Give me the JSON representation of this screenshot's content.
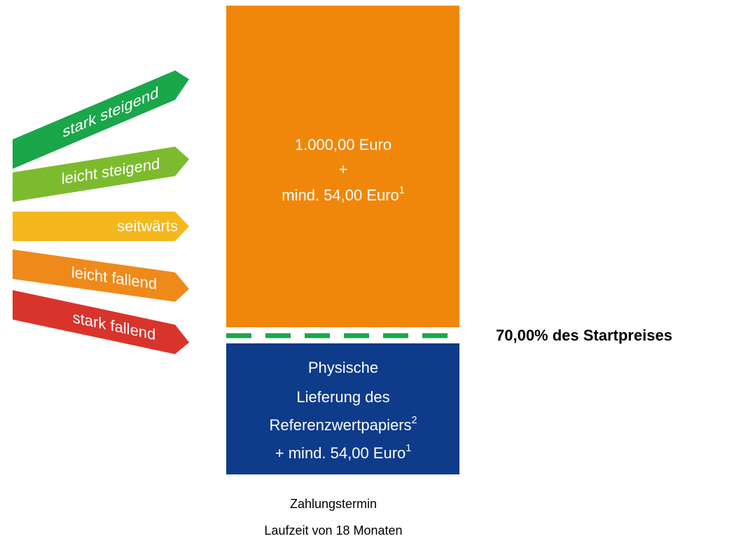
{
  "arrows": [
    {
      "label": "stark steigend",
      "color": "#1aa64a"
    },
    {
      "label": "leicht steigend",
      "color": "#7dbb2e"
    },
    {
      "label": "seitwärts",
      "color": "#f5b81c"
    },
    {
      "label": "leicht fallend",
      "color": "#ef8a1a"
    },
    {
      "label": "stark fallend",
      "color": "#d9342b"
    }
  ],
  "upper_box": {
    "lines": [
      {
        "text": "1.000,00 Euro"
      },
      {
        "text": "+"
      },
      {
        "text": "mind. 54,00 Euro",
        "sup": "1"
      }
    ]
  },
  "barrier": {
    "label": "70,00% des Startpreises"
  },
  "lower_box": {
    "lines": [
      {
        "text": "Physische"
      },
      {
        "text": "Lieferung des"
      },
      {
        "text": "Referenzwertpapiers",
        "sup": "2"
      },
      {
        "text": "+ mind. 54,00 Euro",
        "sup": "1"
      }
    ]
  },
  "footer": {
    "lines": [
      "Zahlungstermin",
      "Laufzeit von 18 Monaten"
    ]
  }
}
